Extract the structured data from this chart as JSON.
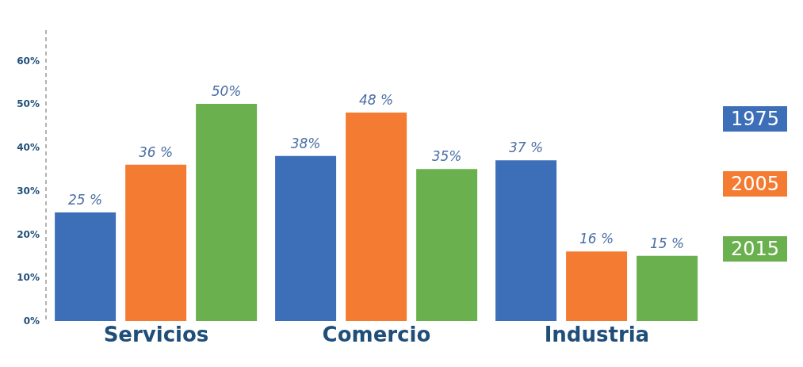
{
  "chart_data": {
    "type": "bar",
    "categories": [
      "Servicios",
      "Comercio",
      "Industria"
    ],
    "series": [
      {
        "name": "1975",
        "color": "#3d6fb8",
        "values": [
          25,
          38,
          37
        ],
        "value_labels": [
          "25 %",
          "38%",
          "37 %"
        ]
      },
      {
        "name": "2005",
        "color": "#f47b32",
        "values": [
          36,
          48,
          16
        ],
        "value_labels": [
          "36 %",
          "48 %",
          "16 %"
        ]
      },
      {
        "name": "2015",
        "color": "#6ab04f",
        "values": [
          50,
          35,
          15
        ],
        "value_labels": [
          "50%",
          "35%",
          "15 %"
        ]
      }
    ],
    "ylim": [
      0,
      67
    ],
    "yticks": [
      {
        "value": 0,
        "label": "0%"
      },
      {
        "value": 10,
        "label": "10%"
      },
      {
        "value": 20,
        "label": "20%"
      },
      {
        "value": 30,
        "label": "30%"
      },
      {
        "value": 40,
        "label": "40%"
      },
      {
        "value": 50,
        "label": "50%"
      },
      {
        "value": 60,
        "label": "60%"
      }
    ],
    "grid": false,
    "legend": "right"
  }
}
